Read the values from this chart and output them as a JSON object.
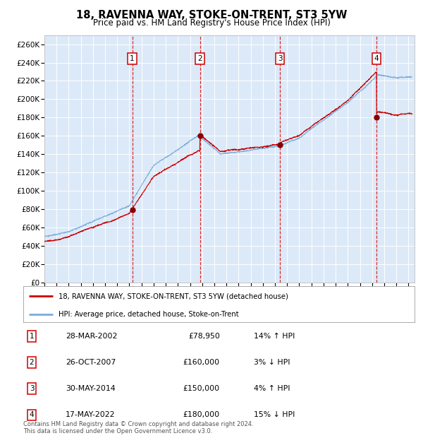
{
  "title": "18, RAVENNA WAY, STOKE-ON-TRENT, ST3 5YW",
  "subtitle": "Price paid vs. HM Land Registry's House Price Index (HPI)",
  "title_fontsize": 10.5,
  "subtitle_fontsize": 8.5,
  "bg_color": "#dce9f8",
  "grid_color": "#ffffff",
  "ylim": [
    0,
    270000
  ],
  "yticks": [
    0,
    20000,
    40000,
    60000,
    80000,
    100000,
    120000,
    140000,
    160000,
    180000,
    200000,
    220000,
    240000,
    260000
  ],
  "xlim_start": 1995.0,
  "xlim_end": 2025.5,
  "transactions": [
    {
      "label": "1",
      "date_num": 2002.24,
      "price": 78950,
      "date_str": "28-MAR-2002"
    },
    {
      "label": "2",
      "date_num": 2007.82,
      "price": 160000,
      "date_str": "26-OCT-2007"
    },
    {
      "label": "3",
      "date_num": 2014.41,
      "price": 150000,
      "date_str": "30-MAY-2014"
    },
    {
      "label": "4",
      "date_num": 2022.37,
      "price": 180000,
      "date_str": "17-MAY-2022"
    }
  ],
  "legend_line1": "18, RAVENNA WAY, STOKE-ON-TRENT, ST3 5YW (detached house)",
  "legend_line2": "HPI: Average price, detached house, Stoke-on-Trent",
  "footer": "Contains HM Land Registry data © Crown copyright and database right 2024.\nThis data is licensed under the Open Government Licence v3.0.",
  "red_line_color": "#cc0000",
  "blue_line_color": "#7aaddb",
  "table_rows": [
    [
      "1",
      "28-MAR-2002",
      "£78,950",
      "14% ↑ HPI"
    ],
    [
      "2",
      "26-OCT-2007",
      "£160,000",
      "3% ↓ HPI"
    ],
    [
      "3",
      "30-MAY-2014",
      "£150,000",
      "4% ↑ HPI"
    ],
    [
      "4",
      "17-MAY-2022",
      "£180,000",
      "15% ↓ HPI"
    ]
  ]
}
